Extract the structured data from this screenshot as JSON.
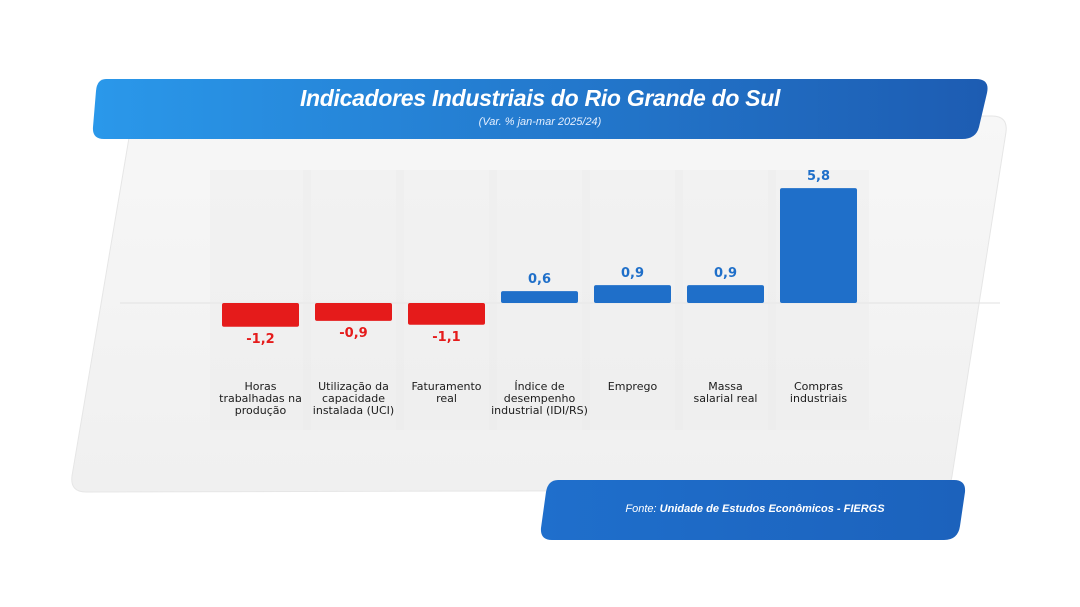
{
  "header": {
    "title": "Indicadores Industriais do Rio Grande do Sul",
    "subtitle": "(Var. % jan-mar 2025/24)"
  },
  "footer": {
    "source_prefix": "Fonte:",
    "source_name": "Unidade de Estudos Econômicos - FIERGS"
  },
  "colors": {
    "positive": "#1f6fc9",
    "negative": "#e51b1b",
    "banner_start": "#2a96e8",
    "banner_end": "#1d5fb4",
    "panel": "#f2f2f2"
  },
  "chart_data": {
    "type": "bar",
    "title": "Indicadores Industriais do Rio Grande do Sul",
    "subtitle": "(Var. % jan-mar 2025/24)",
    "categories": [
      "Horas\ntrabalhadas na\nprodução",
      "Utilização da\ncapacidade\ninstalada (UCI)",
      "Faturamento\nreal",
      "Índice de\ndesempenho\nindustrial (IDI/RS)",
      "Emprego",
      "Massa\nsalarial real",
      "Compras\nindustriais"
    ],
    "values": [
      -1.2,
      -0.9,
      -1.1,
      0.6,
      0.9,
      0.9,
      5.8
    ],
    "value_labels": [
      "-1,2",
      "-0,9",
      "-1,1",
      "0,6",
      "0,9",
      "0,9",
      "5,8"
    ],
    "ylim": [
      -1.2,
      5.8
    ],
    "grid": false,
    "legend": "none"
  }
}
